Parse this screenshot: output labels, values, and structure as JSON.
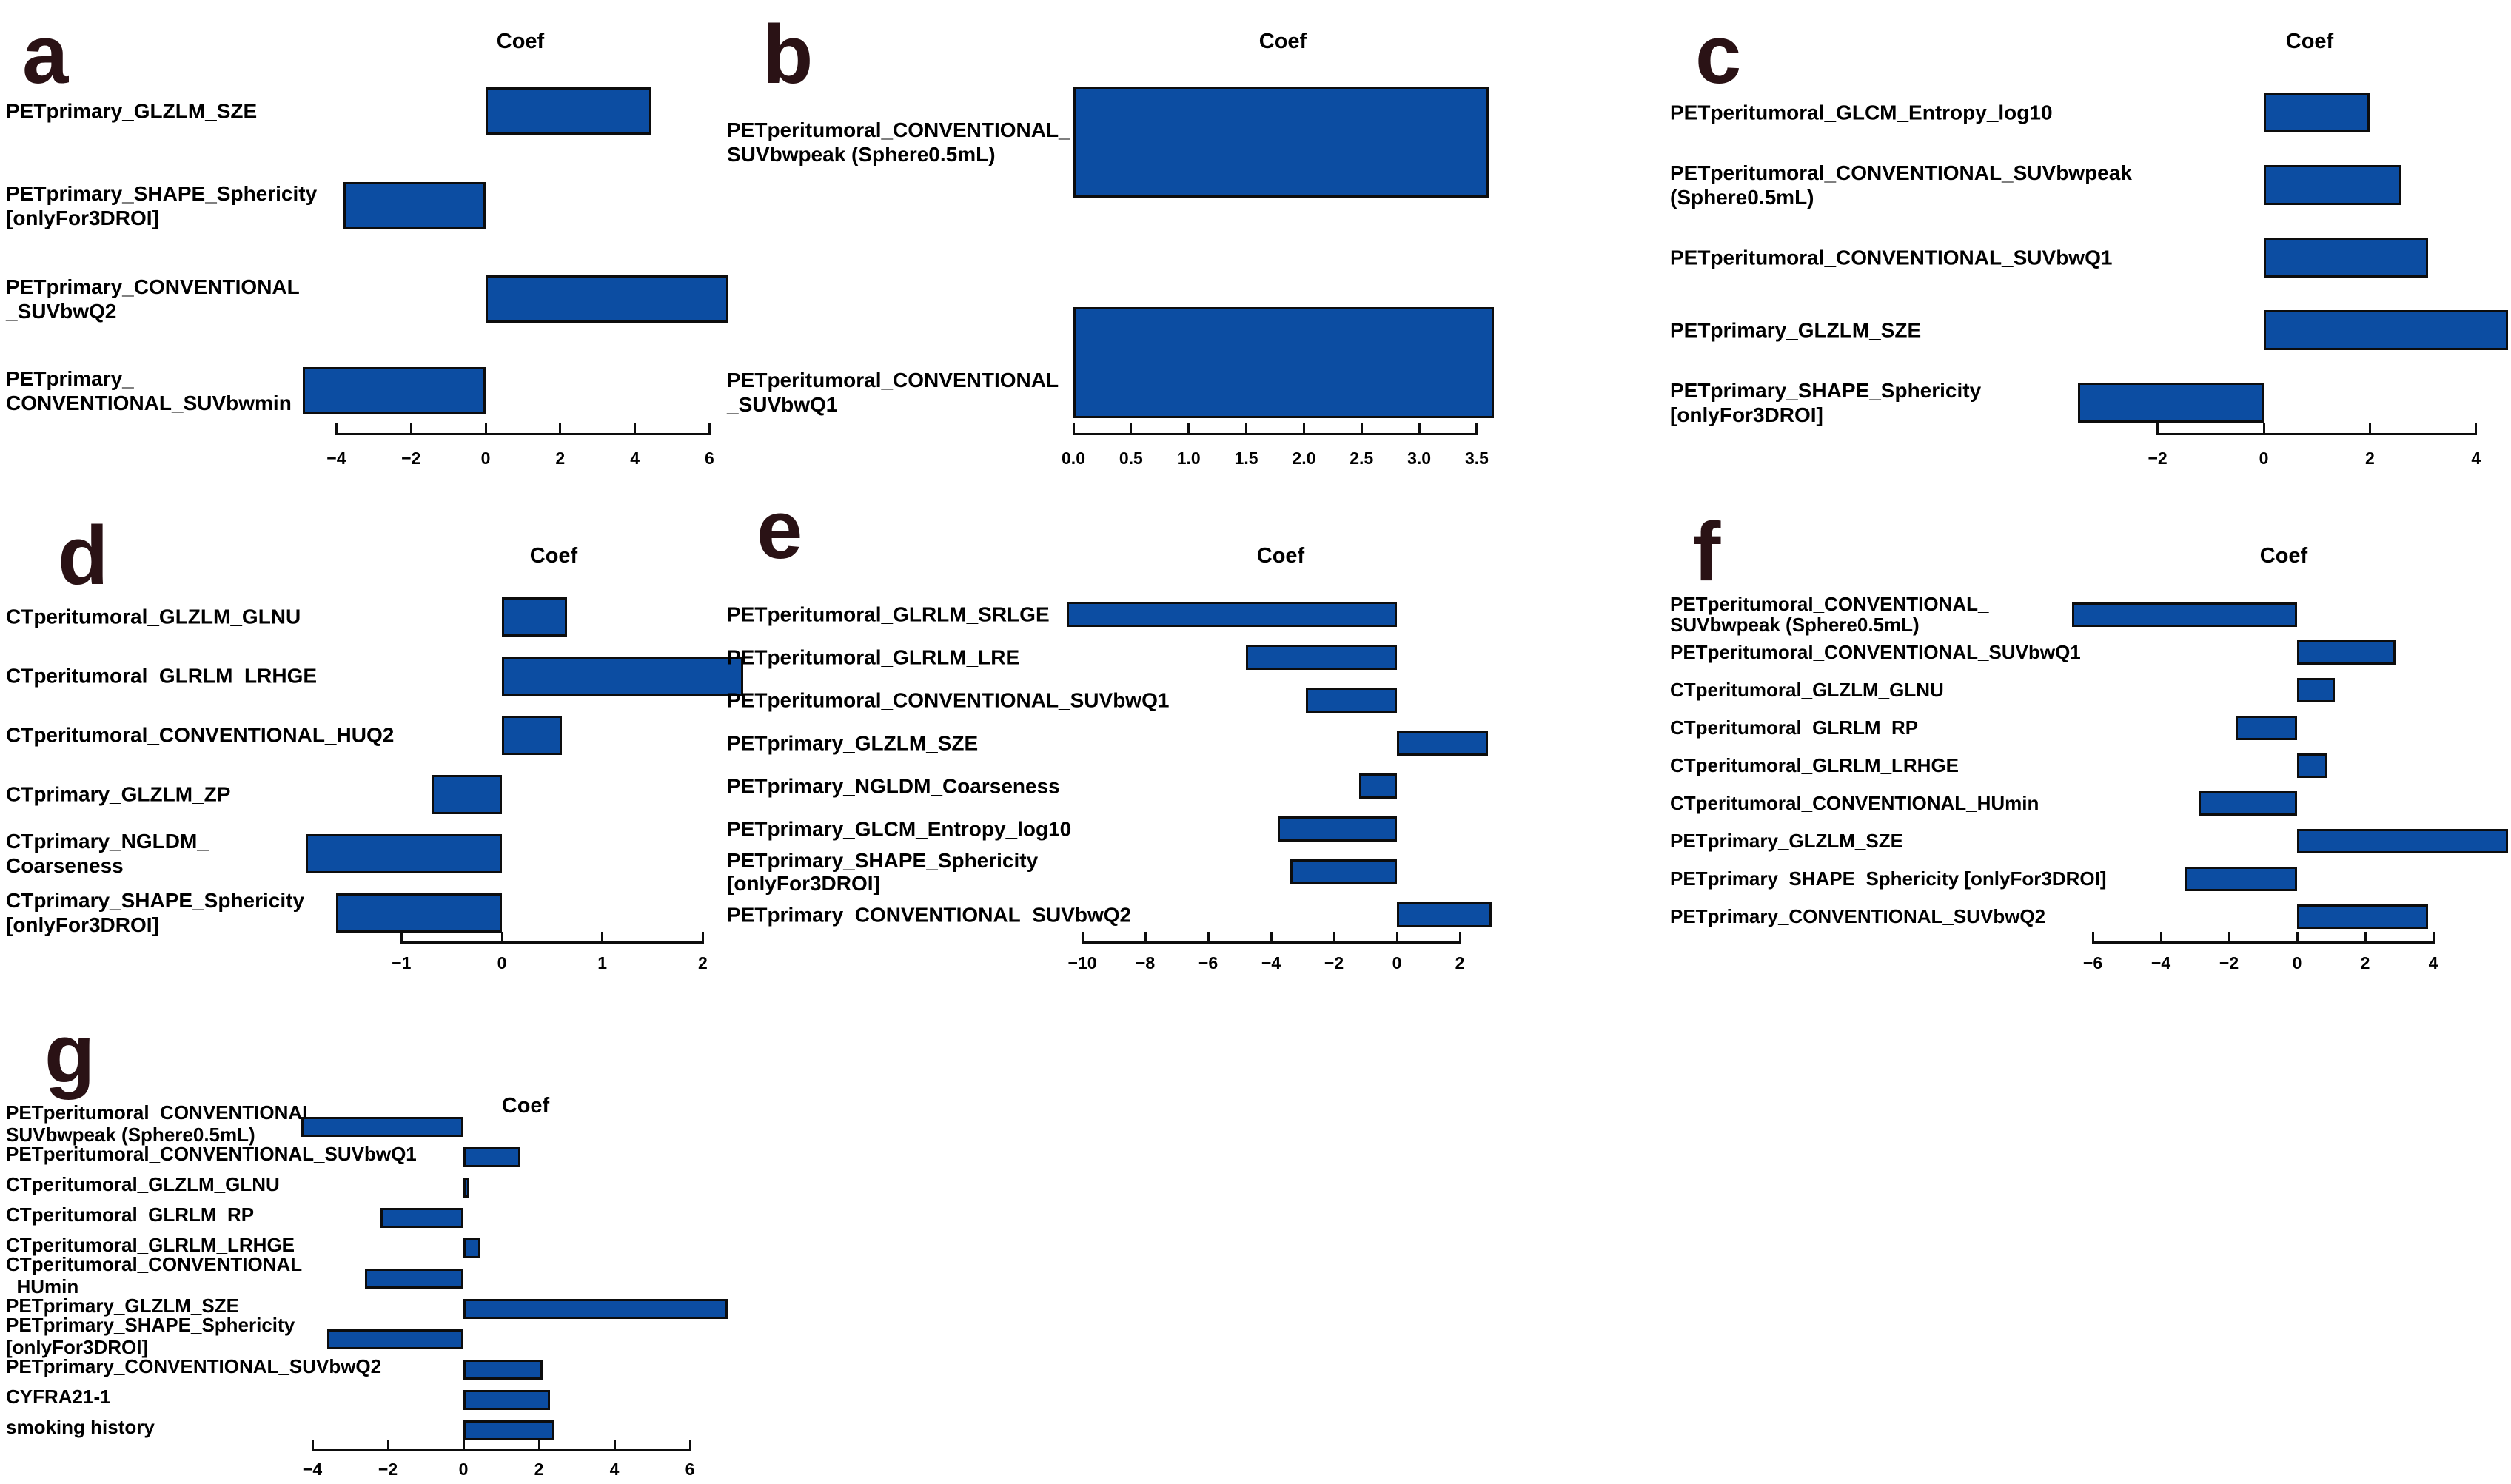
{
  "figure": {
    "background": "#ffffff",
    "bar_color": "#0c4da2",
    "bar_border_color": "#0d0d0d",
    "text_color": "#000000",
    "letter_color": "#2a1215",
    "axis_title": "Coef"
  },
  "chart_data": [
    {
      "id": "a",
      "panel_label": "a",
      "type": "bar",
      "orientation": "horizontal",
      "title": "Coef",
      "categories": [
        "PETprimary_GLZLM_SZE",
        "PETprimary_SHAPE_Sphericity\n[onlyFor3DROI]",
        "PETprimary_CONVENTIONAL\n_SUVbwQ2",
        "PETprimary_\nCONVENTIONAL_SUVbwmin"
      ],
      "values": [
        4.45,
        -3.8,
        6.5,
        -4.9
      ],
      "xticks": [
        -4,
        -2,
        0,
        2,
        4,
        6
      ],
      "xtick_labels": [
        "−4",
        "−2",
        "0",
        "2",
        "4",
        "6"
      ],
      "xlim": [
        -4,
        6
      ],
      "grid": false,
      "legend": null
    },
    {
      "id": "b",
      "panel_label": "b",
      "type": "bar",
      "orientation": "horizontal",
      "title": "Coef",
      "categories": [
        "PETperitumoral_CONVENTIONAL_\nSUVbwpeak (Sphere0.5mL)",
        "PETperitumoral_CONVENTIONAL\n_SUVbwQ1"
      ],
      "values": [
        3.6,
        3.65
      ],
      "xticks": [
        0,
        0.5,
        1,
        1.5,
        2,
        2.5,
        3,
        3.5
      ],
      "xtick_labels": [
        "0.0",
        "0.5",
        "1.0",
        "1.5",
        "2.0",
        "2.5",
        "3.0",
        "3.5"
      ],
      "xlim": [
        0,
        3.5
      ],
      "grid": false,
      "legend": null
    },
    {
      "id": "c",
      "panel_label": "c",
      "type": "bar",
      "orientation": "horizontal",
      "title": "Coef",
      "categories": [
        "PETperitumoral_GLCM_Entropy_log10",
        "PETperitumoral_CONVENTIONAL_SUVbwpeak\n(Sphere0.5mL)",
        "PETperitumoral_CONVENTIONAL_SUVbwQ1",
        "PETprimary_GLZLM_SZE",
        "PETprimary_SHAPE_Sphericity\n[onlyFor3DROI]"
      ],
      "values": [
        2.0,
        2.6,
        3.1,
        4.6,
        -3.5
      ],
      "xticks": [
        -2,
        0,
        2,
        4
      ],
      "xtick_labels": [
        "−2",
        "0",
        "2",
        "4"
      ],
      "xlim": [
        -2,
        4
      ],
      "grid": false,
      "legend": null
    },
    {
      "id": "d",
      "panel_label": "d",
      "type": "bar",
      "orientation": "horizontal",
      "title": "Coef",
      "categories": [
        "CTperitumoral_GLZLM_GLNU",
        "CTperitumoral_GLRLM_LRHGE",
        "CTperitumoral_CONVENTIONAL_HUQ2",
        "CTprimary_GLZLM_ZP",
        "CTprimary_NGLDM_\nCoarseness",
        "CTprimary_SHAPE_Sphericity\n[onlyFor3DROI]"
      ],
      "values": [
        0.65,
        2.4,
        0.6,
        -0.7,
        -1.95,
        -1.65
      ],
      "xticks": [
        -1,
        0,
        1,
        2
      ],
      "xtick_labels": [
        "−1",
        "0",
        "1",
        "2"
      ],
      "xlim": [
        -1,
        2
      ],
      "grid": false,
      "legend": null
    },
    {
      "id": "e",
      "panel_label": "e",
      "type": "bar",
      "orientation": "horizontal",
      "title": "Coef",
      "categories": [
        "PETperitumoral_GLRLM_SRLGE",
        "PETperitumoral_GLRLM_LRE",
        "PETperitumoral_CONVENTIONAL_SUVbwQ1",
        "PETprimary_GLZLM_SZE",
        "PETprimary_NGLDM_Coarseness",
        "PETprimary_GLCM_Entropy_log10",
        "PETprimary_SHAPE_Sphericity [onlyFor3DROI]",
        "PETprimary_CONVENTIONAL_SUVbwQ2"
      ],
      "values": [
        -10.5,
        -4.8,
        -2.9,
        2.9,
        -1.2,
        -3.8,
        -3.4,
        3.0
      ],
      "xticks": [
        -10,
        -8,
        -6,
        -4,
        -2,
        0,
        2
      ],
      "xtick_labels": [
        "−10",
        "−8",
        "−6",
        "−4",
        "−2",
        "0",
        "2"
      ],
      "xlim": [
        -10,
        2
      ],
      "grid": false,
      "legend": null
    },
    {
      "id": "f",
      "panel_label": "f",
      "type": "bar",
      "orientation": "horizontal",
      "title": "Coef",
      "categories": [
        "PETperitumoral_CONVENTIONAL_\nSUVbwpeak (Sphere0.5mL)",
        "PETperitumoral_CONVENTIONAL_SUVbwQ1",
        "CTperitumoral_GLZLM_GLNU",
        "CTperitumoral_GLRLM_RP",
        "CTperitumoral_GLRLM_LRHGE",
        "CTperitumoral_CONVENTIONAL_HUmin",
        "PETprimary_GLZLM_SZE",
        "PETprimary_SHAPE_Sphericity [onlyFor3DROI]",
        "PETprimary_CONVENTIONAL_SUVbwQ2"
      ],
      "values": [
        -6.6,
        2.9,
        1.1,
        -1.8,
        0.9,
        -2.9,
        6.2,
        -3.3,
        3.85
      ],
      "xticks": [
        -6,
        -4,
        -2,
        0,
        2,
        4
      ],
      "xtick_labels": [
        "−6",
        "−4",
        "−2",
        "0",
        "2",
        "4"
      ],
      "xlim": [
        -6,
        4
      ],
      "grid": false,
      "legend": null
    },
    {
      "id": "g",
      "panel_label": "g",
      "type": "bar",
      "orientation": "horizontal",
      "title": "Coef",
      "categories": [
        "PETperitumoral_CONVENTIONAL_\nSUVbwpeak (Sphere0.5mL)",
        "PETperitumoral_CONVENTIONAL_SUVbwQ1",
        "CTperitumoral_GLZLM_GLNU",
        "CTperitumoral_GLRLM_RP",
        "CTperitumoral_GLRLM_LRHGE",
        "CTperitumoral_CONVENTIONAL\n_HUmin",
        "PETprimary_GLZLM_SZE",
        "PETprimary_SHAPE_Sphericity\n[onlyFor3DROI]",
        "PETprimary_CONVENTIONAL_SUVbwQ2",
        "CYFRA21-1",
        "smoking history"
      ],
      "values": [
        -4.3,
        1.5,
        0.15,
        -2.2,
        0.45,
        -2.6,
        7.0,
        -3.6,
        2.1,
        2.3,
        2.4
      ],
      "xticks": [
        -4,
        -2,
        0,
        2,
        4,
        6
      ],
      "xtick_labels": [
        "−4",
        "−2",
        "0",
        "2",
        "4",
        "6"
      ],
      "xlim": [
        -4,
        6
      ],
      "grid": false,
      "legend": null
    }
  ]
}
